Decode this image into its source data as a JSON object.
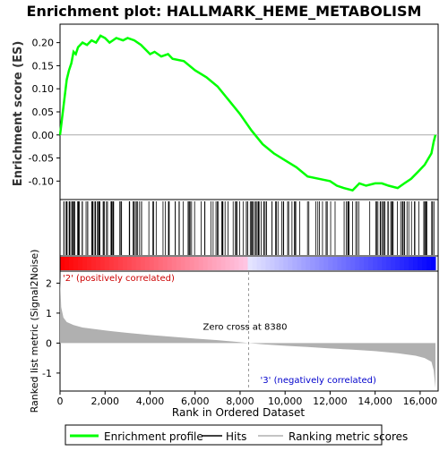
{
  "chart_data": {
    "type": "line",
    "title": "Enrichment plot: HALLMARK_HEME_METABOLISM",
    "ylabel_top": "Enrichment score (ES)",
    "ylabel_bottom": "Ranked list metric (Signal2Noise)",
    "xlabel": "Rank in Ordered Dataset",
    "x_range": [
      0,
      16800
    ],
    "x_ticks": [
      0,
      2000,
      4000,
      6000,
      8000,
      10000,
      12000,
      14000,
      16000
    ],
    "x_tick_labels": [
      "0",
      "2,000",
      "4,000",
      "6,000",
      "8,000",
      "10,000",
      "12,000",
      "14,000",
      "16,000"
    ],
    "es_ylim": [
      -0.14,
      0.24
    ],
    "es_ticks": [
      0.2,
      0.15,
      0.1,
      0.05,
      0.0,
      -0.05,
      -0.1
    ],
    "es_tick_labels": [
      "0.20",
      "0.15",
      "0.10",
      "0.05",
      "0.00",
      "-0.05",
      "-0.10"
    ],
    "metric_ylim": [
      -1.6,
      2.4
    ],
    "metric_ticks": [
      2,
      1,
      0,
      -1
    ],
    "metric_tick_labels": [
      "2",
      "1",
      "0",
      "-1"
    ],
    "zero_cross_label": "Zero cross at 8380",
    "zero_cross_x": 8380,
    "pos_label": "'2' (positively correlated)",
    "neg_label": "'3' (negatively correlated)",
    "es_series": {
      "name": "Enrichment profile",
      "x": [
        0,
        100,
        200,
        300,
        400,
        500,
        600,
        700,
        800,
        1000,
        1200,
        1400,
        1600,
        1800,
        2000,
        2200,
        2500,
        2800,
        3000,
        3300,
        3600,
        4000,
        4200,
        4500,
        4800,
        5000,
        5500,
        6000,
        6500,
        7000,
        7500,
        8000,
        8500,
        9000,
        9500,
        10000,
        10500,
        11000,
        11500,
        12000,
        12300,
        12600,
        13000,
        13300,
        13600,
        14000,
        14300,
        14600,
        15000,
        15300,
        15600,
        15900,
        16200,
        16500,
        16600,
        16680
      ],
      "y": [
        0.0,
        0.04,
        0.08,
        0.12,
        0.14,
        0.155,
        0.18,
        0.175,
        0.19,
        0.2,
        0.195,
        0.205,
        0.2,
        0.215,
        0.21,
        0.2,
        0.21,
        0.205,
        0.21,
        0.205,
        0.195,
        0.175,
        0.18,
        0.17,
        0.175,
        0.165,
        0.16,
        0.14,
        0.125,
        0.105,
        0.075,
        0.045,
        0.01,
        -0.02,
        -0.04,
        -0.055,
        -0.07,
        -0.09,
        -0.095,
        -0.1,
        -0.11,
        -0.115,
        -0.12,
        -0.105,
        -0.11,
        -0.105,
        -0.105,
        -0.11,
        -0.115,
        -0.105,
        -0.095,
        -0.08,
        -0.065,
        -0.04,
        -0.015,
        0.0
      ]
    },
    "metric_series": {
      "name": "Ranking metric scores",
      "x": [
        0,
        50,
        150,
        300,
        600,
        1000,
        2000,
        3000,
        4000,
        5000,
        6000,
        7000,
        8000,
        8380,
        9000,
        10000,
        11000,
        12000,
        13000,
        14000,
        15000,
        15800,
        16200,
        16500,
        16600,
        16680
      ],
      "y": [
        2.2,
        1.2,
        0.85,
        0.7,
        0.6,
        0.52,
        0.42,
        0.34,
        0.27,
        0.21,
        0.15,
        0.1,
        0.03,
        0.0,
        -0.04,
        -0.09,
        -0.13,
        -0.18,
        -0.22,
        -0.27,
        -0.34,
        -0.42,
        -0.5,
        -0.62,
        -0.9,
        -1.5
      ]
    },
    "legend": [
      "Enrichment profile",
      "Hits",
      "Ranking metric scores"
    ],
    "legend_position": "bottom",
    "colors": {
      "es_line": "#00ff00",
      "hits": "#000000",
      "metric": "#b0b0b0",
      "positive": "#ff0000",
      "negative": "#0000ff",
      "pos_text": "#cc0000",
      "neg_text": "#0000cc"
    }
  }
}
